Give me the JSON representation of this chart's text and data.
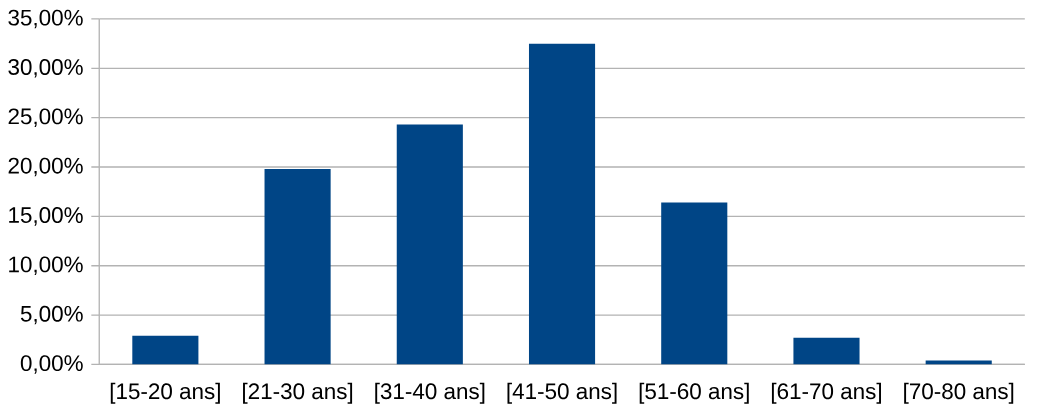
{
  "chart_data": {
    "type": "bar",
    "categories": [
      "[15-20 ans]",
      "[21-30 ans]",
      "[31-40 ans]",
      "[41-50 ans]",
      "[51-60 ans]",
      "[61-70 ans]",
      "[70-80 ans]"
    ],
    "values": [
      2.9,
      19.8,
      24.3,
      32.5,
      16.4,
      2.7,
      0.4
    ],
    "color": "#004586",
    "ylim": [
      0,
      35
    ],
    "yticks": [
      {
        "value": 0,
        "label": "0,00%"
      },
      {
        "value": 5,
        "label": "5,00%"
      },
      {
        "value": 10,
        "label": "10,00%"
      },
      {
        "value": 15,
        "label": "15,00%"
      },
      {
        "value": 20,
        "label": "20,00%"
      },
      {
        "value": 25,
        "label": "25,00%"
      },
      {
        "value": 30,
        "label": "30,00%"
      },
      {
        "value": 35,
        "label": "35,00%"
      }
    ],
    "grid": "y"
  }
}
